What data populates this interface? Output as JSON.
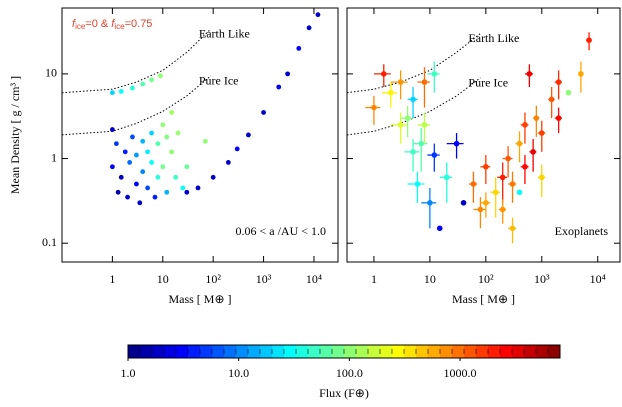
{
  "chart_data": [
    {
      "type": "scatter",
      "log_x": true,
      "log_y": true,
      "colormap": "jet",
      "xlabel": "Mass [ M⊕ ]",
      "ylabel": "Mean Density [ g / cm³ ]",
      "xlim": [
        0.1,
        30000
      ],
      "ylim": [
        0.06,
        60
      ],
      "xticks": [
        1,
        10,
        {
          "value": 100,
          "label": "10²"
        },
        {
          "value": 1000,
          "label": "10³"
        },
        {
          "value": 10000,
          "label": "10⁴"
        }
      ],
      "yticks": [
        0.1,
        1,
        10
      ],
      "annotation_parts": [
        "f",
        "ice",
        "=0  &  ",
        "f",
        "ice",
        "=0.75"
      ],
      "annotation_color": "#e8402a",
      "region_label": "0.06 < a /AU < 1.0",
      "curves": [
        {
          "name": "Earth Like",
          "x": [
            0.1,
            1,
            3,
            10,
            30,
            90
          ],
          "y": [
            6,
            6.6,
            8,
            11,
            18,
            34
          ]
        },
        {
          "name": "Pure Ice",
          "x": [
            0.1,
            1,
            3,
            10,
            30,
            90
          ],
          "y": [
            1.9,
            2.1,
            2.6,
            3.6,
            5.5,
            9.5
          ]
        }
      ],
      "x": [
        1,
        1.5,
        2.5,
        4,
        6,
        9,
        1,
        1,
        1.2,
        1.3,
        1.5,
        1.8,
        2,
        2.2,
        2.5,
        3,
        3,
        3.5,
        4,
        4,
        5,
        5,
        6,
        6,
        7,
        8,
        8,
        10,
        10,
        12,
        12,
        15,
        15,
        18,
        20,
        25,
        30,
        30,
        50,
        70,
        100,
        200,
        300,
        500,
        1000,
        2000,
        3000,
        5000,
        8000,
        12000
      ],
      "y": [
        6,
        6.2,
        6.8,
        7.6,
        8.5,
        9.5,
        2.2,
        0.8,
        1.5,
        0.4,
        0.6,
        1.2,
        0.35,
        0.9,
        1.8,
        0.5,
        1.1,
        0.3,
        0.7,
        1.6,
        0.45,
        1.2,
        0.9,
        2,
        0.35,
        0.6,
        1.5,
        2.5,
        0.8,
        1.8,
        0.4,
        1.2,
        3.5,
        0.6,
        2,
        0.45,
        0.8,
        0.4,
        0.45,
        1.6,
        0.6,
        0.9,
        1.3,
        1.9,
        3.5,
        7,
        10,
        20,
        35,
        50
      ],
      "flux": [
        20,
        30,
        40,
        60,
        80,
        100,
        2,
        3,
        5,
        1.5,
        2,
        4,
        2,
        8,
        6,
        3,
        12,
        2,
        10,
        15,
        6,
        25,
        30,
        20,
        4,
        40,
        60,
        100,
        80,
        90,
        15,
        100,
        120,
        50,
        110,
        30,
        70,
        2,
        2,
        100,
        2,
        2,
        3,
        2,
        2,
        3,
        2,
        3,
        2,
        2
      ]
    },
    {
      "type": "errorbar",
      "log_x": true,
      "log_y": true,
      "colormap": "jet",
      "xlabel": "Mass [ M⊕ ]",
      "xlim": [
        0.33,
        25000
      ],
      "ylim": [
        0.06,
        60
      ],
      "xticks": [
        1,
        10,
        {
          "value": 100,
          "label": "10²"
        },
        {
          "value": 1000,
          "label": "10³"
        },
        {
          "value": 10000,
          "label": "10⁴"
        }
      ],
      "yticks": [
        0.1,
        1,
        10
      ],
      "region_label": "Exoplanets",
      "curves": [
        {
          "name": "Earth Like",
          "x": [
            0.33,
            1,
            3,
            10,
            30,
            80
          ],
          "y": [
            6,
            6.6,
            8,
            11,
            18,
            30
          ]
        },
        {
          "name": "Pure Ice",
          "x": [
            0.33,
            1,
            3,
            10,
            30,
            80
          ],
          "y": [
            1.9,
            2.1,
            2.6,
            3.6,
            5.5,
            9
          ]
        }
      ],
      "x": [
        1,
        1.5,
        2,
        3,
        3,
        4,
        5,
        5,
        6,
        7,
        8,
        10,
        12,
        15,
        20,
        30,
        40,
        60,
        80,
        100,
        100,
        150,
        200,
        200,
        250,
        300,
        300,
        400,
        500,
        500,
        700,
        800,
        1000,
        1000,
        1500,
        2000,
        2000,
        3000,
        5000,
        7000,
        8,
        12,
        400,
        600
      ],
      "y": [
        4,
        10,
        6,
        8,
        2.5,
        3,
        1.2,
        5,
        0.5,
        1.5,
        2.5,
        0.3,
        1.1,
        0.15,
        0.6,
        1.5,
        0.3,
        0.5,
        0.25,
        0.3,
        0.8,
        0.4,
        0.6,
        0.25,
        1,
        0.5,
        0.15,
        1.5,
        0.8,
        2.5,
        1.2,
        3,
        2,
        0.6,
        5,
        3,
        8,
        6,
        10,
        25,
        8,
        10,
        0.4,
        10
      ],
      "flux": [
        800,
        2000,
        300,
        700,
        200,
        100,
        50,
        20,
        30,
        60,
        150,
        10,
        5,
        3,
        40,
        3,
        2,
        1000,
        800,
        600,
        1500,
        400,
        2000,
        700,
        1200,
        900,
        500,
        600,
        2500,
        1500,
        3000,
        800,
        1500,
        400,
        1200,
        2500,
        1800,
        100,
        600,
        2000,
        1000,
        50,
        30,
        3000
      ],
      "xerr": [
        0.3,
        0.5,
        0.6,
        1,
        1,
        1,
        1.5,
        1,
        2,
        2,
        2,
        3,
        3,
        0,
        5,
        10,
        0,
        10,
        20,
        20,
        20,
        30,
        40,
        30,
        50,
        50,
        50,
        60,
        80,
        80,
        100,
        100,
        150,
        150,
        200,
        300,
        300,
        0,
        500,
        800,
        2,
        3,
        0,
        100
      ],
      "yerr": [
        1.5,
        3,
        2,
        3,
        1,
        1.2,
        0.5,
        2,
        0.2,
        0.8,
        1,
        0.15,
        0.4,
        0,
        0.3,
        0.5,
        0,
        0.2,
        0.1,
        0.1,
        0.3,
        0.2,
        0.3,
        0.08,
        0.4,
        0.2,
        0.05,
        0.6,
        0.3,
        1,
        0.5,
        1.2,
        0.8,
        0.25,
        2,
        1,
        3,
        0,
        4,
        6,
        4,
        4,
        0,
        3
      ]
    },
    {
      "type": "colorbar",
      "log_x": true,
      "colormap": "jet",
      "label": "Flux   (F⊕)",
      "xlim": [
        1,
        8000
      ],
      "xticks": [
        {
          "value": 1,
          "label": "1.0"
        },
        {
          "value": 10,
          "label": "10.0"
        },
        {
          "value": 100,
          "label": "100.0"
        },
        {
          "value": 1000,
          "label": "1000.0"
        }
      ]
    }
  ]
}
